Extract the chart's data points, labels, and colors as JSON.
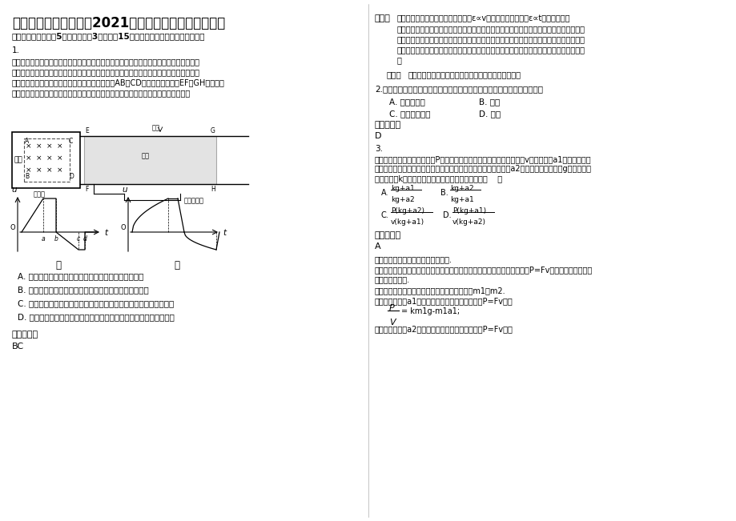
{
  "title": "四川省眉山市多悦中学2021年高三物理期末试题含解析",
  "section1": "一、选择题：本题共5小题，每小题3分，共计15分，每小题只有一个选项符合题意",
  "q1_label": "1.",
  "q1_text_l1": "有一种电磁装置可以向控制中心传输电压信号以判断火车的运行情况，能够产生匀强磁场的",
  "q1_text_l2": "装置被安装在火车厢下面，当它经过安放在两铁轨间的矩形线圈时，便会产生一电信号且被",
  "q1_text_l3": "控制中心接收。假设磁场有与轨道垂直的理想边界AB、CD，且与线圈的两边EF、GH平行，如",
  "q1_text_l4": "图所示（俯视图）。控制中心接收到的线圈两端的电压信号如图，则下列判断正确的是",
  "q1_A": "A. 若电压信号如图甲所示，则火车可能做匀速直线运动",
  "q1_B": "B. 若电压信号如图甲所示，则火车可能做匀加速直线运动",
  "q1_C": "C. 若电压信号如图乙所示，则火车可能做加速度减小的加速直线运动",
  "q1_D": "D. 若电压信号如图乙所示，则火车可能做加速度增大的加速直线运动",
  "answer1_label": "参考答案：",
  "answer1": "BC",
  "label_tieGui": "铁轨",
  "label_xianQuan": "线圈",
  "label_ciChang": "磁场",
  "label_huocheXiang": "火车厢",
  "label_jieKongZhi": "接控制中心",
  "label_jia": "甲",
  "label_yi": "乙",
  "right_analysis_label": "解析：",
  "right_analysis_l1": "磁铁运动时相当于线圈切割磁感线，ε∝v，由甲图可以看出，ε∝t说明线圈是匀",
  "right_analysis_l2": "加速切割磁感线；在线圈离开磁场时，线圈中电流方向相反，电压仍在线性增大，由于线圈",
  "right_analysis_l3": "的绝对值相等，说明加速度相同，综合来看，火车可能做匀加速直线运动。由乙图可以看出",
  "right_analysis_l4": "，在线圈进入和离开磁场时速度增大而加速度减小，火车可能做加速度减小的加速直线运动",
  "right_analysis_l5": "。",
  "right_comment_label": "点评：",
  "right_comment": "本题考查了导线切割磁感线、图象及运动学等知识点。",
  "q2_label": "2.",
  "q2_text": "坐在逆流而上的船中的乘客，我们说他静止是以下列什么物体为参照物的",
  "q2_A": "A. 河岸上的树",
  "q2_B": "B. 河水",
  "q2_C": "C. 迎面驶来的船",
  "q2_D": "D. 船舱",
  "answer2_label": "参考答案：",
  "answer2": "D",
  "q3_label": "3.",
  "q3_text_l1": "列车在空载情况下以恒定功率P经过一段平直的路段，通过某点时速率为v，加速度为a1；当列车满载",
  "q3_text_l2": "货物再次经过同一点时，功率和速率均与原来相同，但加速度变为a2，重力加速度大小为g，设阻力是",
  "q3_text_l3": "列车重力的k倍，则列车满载与空载时的质量之比为（    ）",
  "q3_A_num": "kg+a1",
  "q3_A_den": "kg+a2",
  "q3_B_num": "kg+a2",
  "q3_B_den": "kg+a1",
  "q3_C_num": "P(kg+a2)",
  "q3_C_den": "v(kg+a1)",
  "q3_D_num": "P(kg+a1)",
  "q3_D_den": "v(kg+a2)",
  "answer3_label": "参考答案：",
  "answer3": "A",
  "analysis3_point": "【考点】动率、平均功率和瞬时功率.",
  "analysis3_intro": "【分析】列车的功率等于牵引力与速度的乘积，由牛顿第二定律和功率公式P=Fv，分别研究两种情况",
  "analysis3_intro2": "，联立即可求解.",
  "analysis3_sol1": "【解答】解：设列车满载与空载时的质量分别为m1和m2.",
  "analysis3_sol2": "当空载加速度为a1时，由牛顿第二定律和功率公式P=Fv得：",
  "analysis3_formula": "= km1g-m1a1;",
  "analysis3_sol3": "当满载加速度为a2时，由牛顿第二定律和功率公式P=Fv得："
}
